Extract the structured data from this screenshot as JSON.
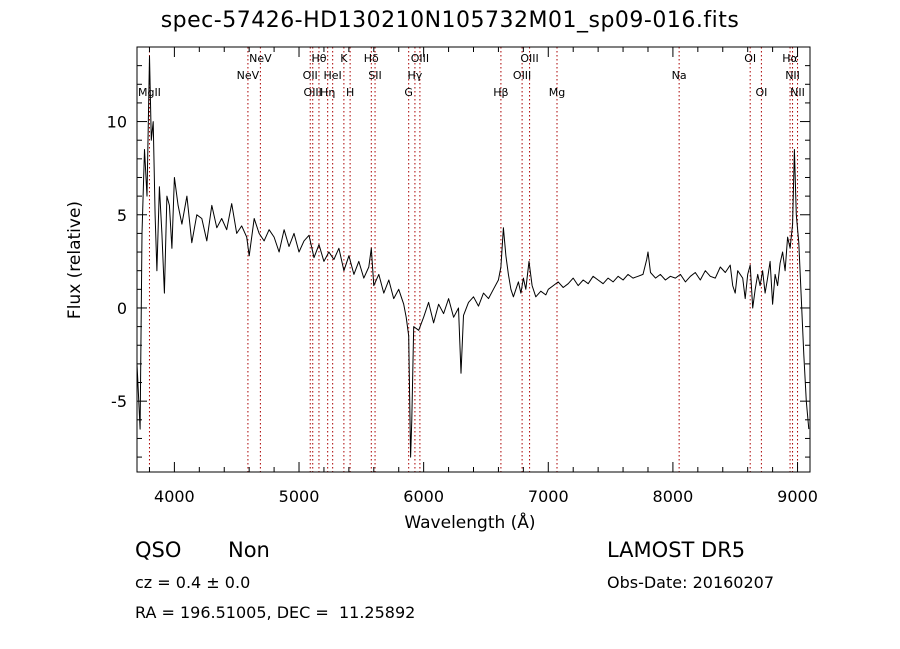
{
  "header": {
    "title": "spec-57426-HD130210N105732M01_sp09-016.fits"
  },
  "info": {
    "class": "QSO",
    "subclass": "Non",
    "survey": "LAMOST DR5",
    "redshift": "cz = 0.4 ± 0.0",
    "obs_date": "Obs-Date: 20160207",
    "coords": "RA = 196.51005, DEC =  11.25892"
  },
  "chart_data": {
    "type": "line",
    "xlabel": "Wavelength (Å)",
    "ylabel": "Flux (relative)",
    "xlim": [
      3700,
      9100
    ],
    "ylim": [
      -8.8,
      14
    ],
    "xticks": [
      4000,
      5000,
      6000,
      7000,
      8000,
      9000
    ],
    "yticks": [
      -5,
      0,
      5,
      10
    ],
    "line_color": "#000000",
    "marker_color": "#aa0000",
    "lines": [
      {
        "label": "MgII",
        "wavelength": 3800,
        "row": 3
      },
      {
        "label": "NeV",
        "wavelength": 4590,
        "row": 2
      },
      {
        "label": "NeV",
        "wavelength": 4690,
        "row": 1
      },
      {
        "label": "OII",
        "wavelength": 5090,
        "row": 2
      },
      {
        "label": "OIII",
        "wavelength": 5110,
        "row": 3
      },
      {
        "label": "Hθ",
        "wavelength": 5160,
        "row": 1
      },
      {
        "label": "Hη",
        "wavelength": 5230,
        "row": 3
      },
      {
        "label": "HeI",
        "wavelength": 5270,
        "row": 2
      },
      {
        "label": "K",
        "wavelength": 5360,
        "row": 1
      },
      {
        "label": "H",
        "wavelength": 5410,
        "row": 3
      },
      {
        "label": "Hδ",
        "wavelength": 5580,
        "row": 1
      },
      {
        "label": "SII",
        "wavelength": 5610,
        "row": 2
      },
      {
        "label": "G",
        "wavelength": 5880,
        "row": 3
      },
      {
        "label": "Hγ",
        "wavelength": 5930,
        "row": 2
      },
      {
        "label": "OIII",
        "wavelength": 5970,
        "row": 1
      },
      {
        "label": "Hβ",
        "wavelength": 6620,
        "row": 3
      },
      {
        "label": "OIII",
        "wavelength": 6790,
        "row": 2
      },
      {
        "label": "OIII",
        "wavelength": 6850,
        "row": 1
      },
      {
        "label": "Mg",
        "wavelength": 7070,
        "row": 3
      },
      {
        "label": "Na",
        "wavelength": 8050,
        "row": 2
      },
      {
        "label": "OI",
        "wavelength": 8620,
        "row": 1
      },
      {
        "label": "OI",
        "wavelength": 8710,
        "row": 3
      },
      {
        "label": "Hα",
        "wavelength": 8940,
        "row": 1
      },
      {
        "label": "NII",
        "wavelength": 8960,
        "row": 2
      },
      {
        "label": "NII",
        "wavelength": 9000,
        "row": 3
      }
    ],
    "spectrum": [
      [
        3700,
        -3.0
      ],
      [
        3725,
        -6.5
      ],
      [
        3740,
        4.0
      ],
      [
        3760,
        8.5
      ],
      [
        3780,
        6.0
      ],
      [
        3800,
        13.5
      ],
      [
        3815,
        9.0
      ],
      [
        3830,
        10.0
      ],
      [
        3845,
        5.0
      ],
      [
        3860,
        2.0
      ],
      [
        3880,
        6.5
      ],
      [
        3900,
        4.0
      ],
      [
        3920,
        0.8
      ],
      [
        3940,
        6.0
      ],
      [
        3960,
        5.5
      ],
      [
        3980,
        3.2
      ],
      [
        4000,
        7.0
      ],
      [
        4030,
        5.5
      ],
      [
        4060,
        4.5
      ],
      [
        4100,
        6.0
      ],
      [
        4140,
        3.5
      ],
      [
        4180,
        5.0
      ],
      [
        4220,
        4.8
      ],
      [
        4260,
        3.6
      ],
      [
        4300,
        5.5
      ],
      [
        4340,
        4.3
      ],
      [
        4380,
        4.8
      ],
      [
        4420,
        4.2
      ],
      [
        4460,
        5.6
      ],
      [
        4500,
        4.0
      ],
      [
        4540,
        4.4
      ],
      [
        4580,
        3.8
      ],
      [
        4600,
        2.8
      ],
      [
        4640,
        4.8
      ],
      [
        4680,
        4.0
      ],
      [
        4720,
        3.6
      ],
      [
        4760,
        4.2
      ],
      [
        4800,
        3.8
      ],
      [
        4840,
        3.0
      ],
      [
        4880,
        4.2
      ],
      [
        4920,
        3.3
      ],
      [
        4960,
        4.0
      ],
      [
        5000,
        3.0
      ],
      [
        5040,
        3.6
      ],
      [
        5080,
        3.9
      ],
      [
        5120,
        2.7
      ],
      [
        5160,
        3.4
      ],
      [
        5200,
        2.5
      ],
      [
        5240,
        3.0
      ],
      [
        5280,
        2.6
      ],
      [
        5320,
        3.2
      ],
      [
        5360,
        2.0
      ],
      [
        5400,
        2.8
      ],
      [
        5440,
        1.8
      ],
      [
        5480,
        2.5
      ],
      [
        5520,
        1.6
      ],
      [
        5560,
        2.2
      ],
      [
        5580,
        3.2
      ],
      [
        5600,
        1.2
      ],
      [
        5640,
        1.8
      ],
      [
        5680,
        0.8
      ],
      [
        5720,
        1.5
      ],
      [
        5760,
        0.5
      ],
      [
        5800,
        1.0
      ],
      [
        5840,
        0.2
      ],
      [
        5860,
        -0.5
      ],
      [
        5880,
        -1.5
      ],
      [
        5895,
        -8.0
      ],
      [
        5905,
        -6.0
      ],
      [
        5920,
        -1.0
      ],
      [
        5960,
        -1.2
      ],
      [
        6000,
        -0.5
      ],
      [
        6040,
        0.3
      ],
      [
        6080,
        -0.8
      ],
      [
        6120,
        0.2
      ],
      [
        6160,
        -0.3
      ],
      [
        6200,
        0.5
      ],
      [
        6240,
        -0.5
      ],
      [
        6280,
        0.0
      ],
      [
        6300,
        -3.5
      ],
      [
        6320,
        -0.4
      ],
      [
        6360,
        0.3
      ],
      [
        6400,
        0.6
      ],
      [
        6440,
        0.1
      ],
      [
        6480,
        0.8
      ],
      [
        6520,
        0.5
      ],
      [
        6560,
        1.0
      ],
      [
        6600,
        1.5
      ],
      [
        6620,
        2.2
      ],
      [
        6640,
        4.3
      ],
      [
        6660,
        2.8
      ],
      [
        6680,
        1.8
      ],
      [
        6700,
        1.0
      ],
      [
        6720,
        0.6
      ],
      [
        6740,
        1.0
      ],
      [
        6760,
        1.4
      ],
      [
        6780,
        0.8
      ],
      [
        6800,
        1.6
      ],
      [
        6820,
        1.0
      ],
      [
        6845,
        2.5
      ],
      [
        6870,
        1.2
      ],
      [
        6900,
        0.6
      ],
      [
        6940,
        0.9
      ],
      [
        6980,
        0.7
      ],
      [
        7000,
        1.0
      ],
      [
        7040,
        1.2
      ],
      [
        7080,
        1.4
      ],
      [
        7120,
        1.1
      ],
      [
        7160,
        1.3
      ],
      [
        7200,
        1.6
      ],
      [
        7240,
        1.2
      ],
      [
        7280,
        1.5
      ],
      [
        7320,
        1.3
      ],
      [
        7360,
        1.7
      ],
      [
        7400,
        1.5
      ],
      [
        7440,
        1.3
      ],
      [
        7480,
        1.6
      ],
      [
        7520,
        1.4
      ],
      [
        7560,
        1.7
      ],
      [
        7600,
        1.5
      ],
      [
        7640,
        1.8
      ],
      [
        7680,
        1.6
      ],
      [
        7720,
        1.7
      ],
      [
        7760,
        1.8
      ],
      [
        7790,
        2.6
      ],
      [
        7800,
        3.0
      ],
      [
        7820,
        1.9
      ],
      [
        7860,
        1.6
      ],
      [
        7900,
        1.8
      ],
      [
        7940,
        1.5
      ],
      [
        7980,
        1.7
      ],
      [
        8020,
        1.6
      ],
      [
        8060,
        1.8
      ],
      [
        8100,
        1.4
      ],
      [
        8140,
        1.7
      ],
      [
        8180,
        1.9
      ],
      [
        8220,
        1.5
      ],
      [
        8260,
        2.0
      ],
      [
        8300,
        1.7
      ],
      [
        8340,
        1.6
      ],
      [
        8380,
        2.2
      ],
      [
        8420,
        1.9
      ],
      [
        8460,
        2.3
      ],
      [
        8480,
        1.2
      ],
      [
        8500,
        0.8
      ],
      [
        8520,
        2.0
      ],
      [
        8560,
        1.6
      ],
      [
        8580,
        0.5
      ],
      [
        8600,
        1.8
      ],
      [
        8620,
        2.3
      ],
      [
        8640,
        0.0
      ],
      [
        8660,
        1.0
      ],
      [
        8680,
        1.8
      ],
      [
        8700,
        1.2
      ],
      [
        8720,
        2.0
      ],
      [
        8740,
        0.8
      ],
      [
        8760,
        1.6
      ],
      [
        8780,
        2.5
      ],
      [
        8800,
        0.2
      ],
      [
        8820,
        1.8
      ],
      [
        8840,
        1.2
      ],
      [
        8860,
        2.4
      ],
      [
        8880,
        3.0
      ],
      [
        8900,
        2.0
      ],
      [
        8920,
        3.8
      ],
      [
        8940,
        3.2
      ],
      [
        8960,
        4.5
      ],
      [
        8975,
        8.5
      ],
      [
        8990,
        5.0
      ],
      [
        9010,
        3.5
      ],
      [
        9030,
        0.5
      ],
      [
        9050,
        -2.5
      ],
      [
        9070,
        -5.0
      ],
      [
        9090,
        -6.5
      ]
    ]
  }
}
